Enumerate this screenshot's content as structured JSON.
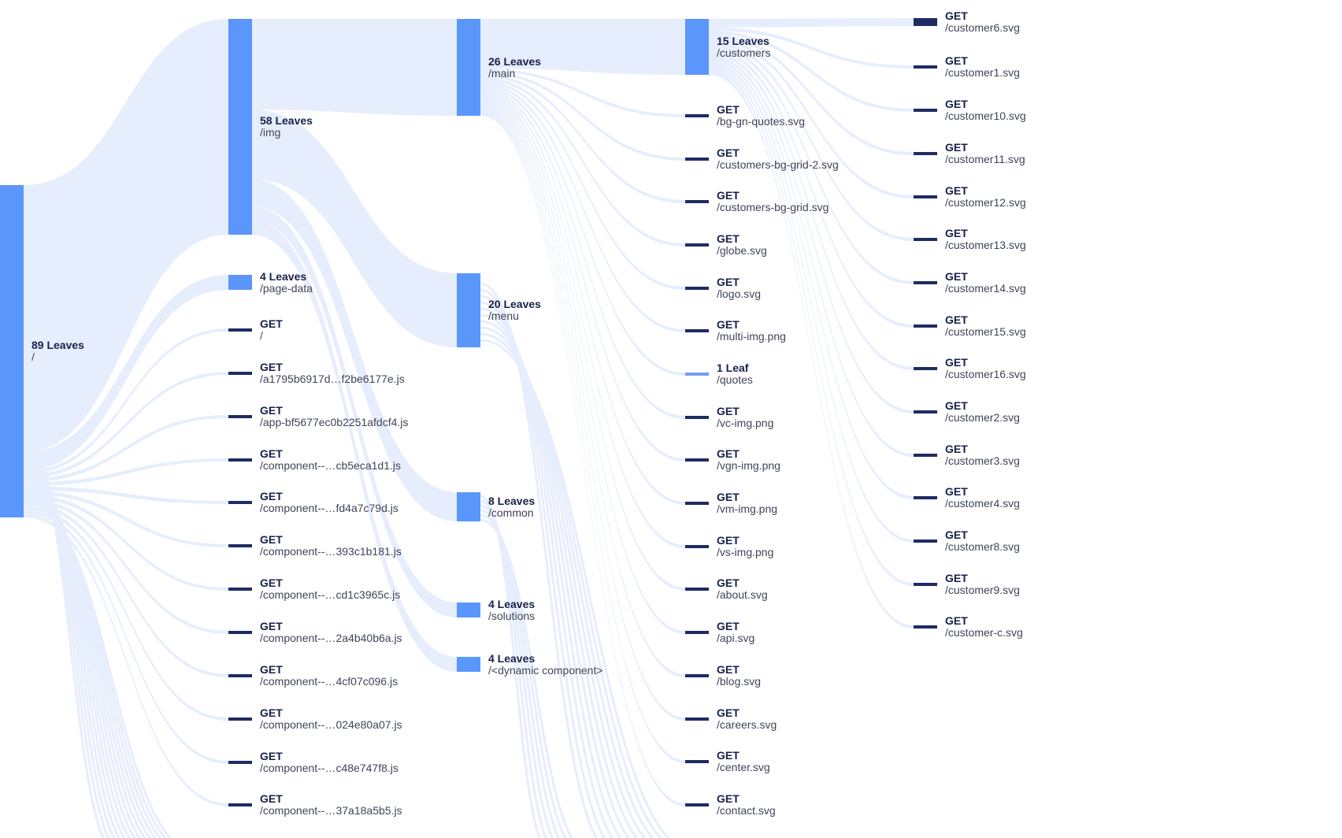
{
  "colors": {
    "link": "#e6edfc",
    "groupNode": "#5b96fb",
    "leafNode": "#1f2b63",
    "singleLeaf": "#6fa0f6"
  },
  "tree": {
    "root": {
      "count": "89 Leaves",
      "path": "/"
    },
    "level1": [
      {
        "count": "58 Leaves",
        "path": "/img",
        "kind": "group"
      },
      {
        "count": "4 Leaves",
        "path": "/page-data",
        "kind": "group"
      },
      {
        "count": "GET",
        "path": "/",
        "kind": "leaf"
      },
      {
        "count": "GET",
        "path": "/a1795b6917d…f2be6177e.js",
        "kind": "leaf"
      },
      {
        "count": "GET",
        "path": "/app-bf5677ec0b2251afdcf4.js",
        "kind": "leaf"
      },
      {
        "count": "GET",
        "path": "/component--…cb5eca1d1.js",
        "kind": "leaf"
      },
      {
        "count": "GET",
        "path": "/component--…fd4a7c79d.js",
        "kind": "leaf"
      },
      {
        "count": "GET",
        "path": "/component--…393c1b181.js",
        "kind": "leaf"
      },
      {
        "count": "GET",
        "path": "/component--…cd1c3965c.js",
        "kind": "leaf"
      },
      {
        "count": "GET",
        "path": "/component--…2a4b40b6a.js",
        "kind": "leaf"
      },
      {
        "count": "GET",
        "path": "/component--…4cf07c096.js",
        "kind": "leaf"
      },
      {
        "count": "GET",
        "path": "/component--…024e80a07.js",
        "kind": "leaf"
      },
      {
        "count": "GET",
        "path": "/component--…c48e747f8.js",
        "kind": "leaf"
      },
      {
        "count": "GET",
        "path": "/component--…37a18a5b5.js",
        "kind": "leaf"
      }
    ],
    "level2": [
      {
        "count": "26 Leaves",
        "path": "/main",
        "kind": "group"
      },
      {
        "count": "20 Leaves",
        "path": "/menu",
        "kind": "group"
      },
      {
        "count": "8 Leaves",
        "path": "/common",
        "kind": "group"
      },
      {
        "count": "4 Leaves",
        "path": "/solutions",
        "kind": "group"
      },
      {
        "count": "4 Leaves",
        "path": "/<dynamic component>",
        "kind": "group"
      }
    ],
    "level3": [
      {
        "count": "15 Leaves",
        "path": "/customers",
        "kind": "group"
      },
      {
        "count": "GET",
        "path": "/bg-gn-quotes.svg",
        "kind": "leaf"
      },
      {
        "count": "GET",
        "path": "/customers-bg-grid-2.svg",
        "kind": "leaf"
      },
      {
        "count": "GET",
        "path": "/customers-bg-grid.svg",
        "kind": "leaf"
      },
      {
        "count": "GET",
        "path": "/globe.svg",
        "kind": "leaf"
      },
      {
        "count": "GET",
        "path": "/logo.svg",
        "kind": "leaf"
      },
      {
        "count": "GET",
        "path": "/multi-img.png",
        "kind": "leaf"
      },
      {
        "count": "1 Leaf",
        "path": "/quotes",
        "kind": "single"
      },
      {
        "count": "GET",
        "path": "/vc-img.png",
        "kind": "leaf"
      },
      {
        "count": "GET",
        "path": "/vgn-img.png",
        "kind": "leaf"
      },
      {
        "count": "GET",
        "path": "/vm-img.png",
        "kind": "leaf"
      },
      {
        "count": "GET",
        "path": "/vs-img.png",
        "kind": "leaf"
      },
      {
        "count": "GET",
        "path": "/about.svg",
        "kind": "leaf"
      },
      {
        "count": "GET",
        "path": "/api.svg",
        "kind": "leaf"
      },
      {
        "count": "GET",
        "path": "/blog.svg",
        "kind": "leaf"
      },
      {
        "count": "GET",
        "path": "/careers.svg",
        "kind": "leaf"
      },
      {
        "count": "GET",
        "path": "/center.svg",
        "kind": "leaf"
      },
      {
        "count": "GET",
        "path": "/contact.svg",
        "kind": "leaf"
      }
    ],
    "level4": [
      {
        "count": "GET",
        "path": "/customer6.svg",
        "kind": "leaf"
      },
      {
        "count": "GET",
        "path": "/customer1.svg",
        "kind": "leaf"
      },
      {
        "count": "GET",
        "path": "/customer10.svg",
        "kind": "leaf"
      },
      {
        "count": "GET",
        "path": "/customer11.svg",
        "kind": "leaf"
      },
      {
        "count": "GET",
        "path": "/customer12.svg",
        "kind": "leaf"
      },
      {
        "count": "GET",
        "path": "/customer13.svg",
        "kind": "leaf"
      },
      {
        "count": "GET",
        "path": "/customer14.svg",
        "kind": "leaf"
      },
      {
        "count": "GET",
        "path": "/customer15.svg",
        "kind": "leaf"
      },
      {
        "count": "GET",
        "path": "/customer16.svg",
        "kind": "leaf"
      },
      {
        "count": "GET",
        "path": "/customer2.svg",
        "kind": "leaf"
      },
      {
        "count": "GET",
        "path": "/customer3.svg",
        "kind": "leaf"
      },
      {
        "count": "GET",
        "path": "/customer4.svg",
        "kind": "leaf"
      },
      {
        "count": "GET",
        "path": "/customer8.svg",
        "kind": "leaf"
      },
      {
        "count": "GET",
        "path": "/customer9.svg",
        "kind": "leaf"
      },
      {
        "count": "GET",
        "path": "/customer-c.svg",
        "kind": "leaf"
      }
    ]
  }
}
